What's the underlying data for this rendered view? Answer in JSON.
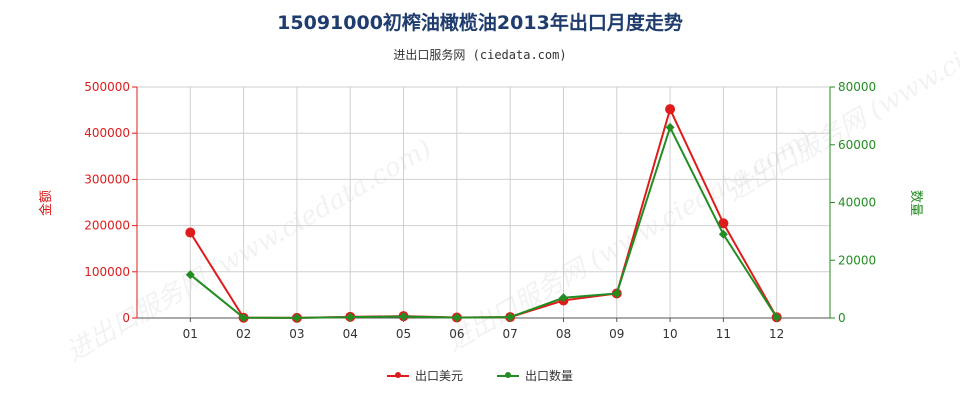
{
  "header": {
    "title": "15091000初榨油橄榄油2013年出口月度走势",
    "subtitle": "进出口服务网 (ciedata.com)"
  },
  "watermark": "进出口服务网 (www.ciedata.com)",
  "colors": {
    "amount": "#dd1c1c",
    "quantity": "#238d23",
    "grid": "#cfcfcf"
  },
  "legend": {
    "amount_label": "出口美元",
    "quantity_label": "出口数量"
  },
  "chart_data": {
    "type": "line",
    "categories": [
      "01",
      "02",
      "03",
      "04",
      "05",
      "06",
      "07",
      "08",
      "09",
      "10",
      "11",
      "12"
    ],
    "ylabel_left": "金额",
    "ylabel_right": "数量",
    "ylim_left": [
      0,
      500000
    ],
    "ylim_right": [
      0,
      80000
    ],
    "yticks_left": [
      0,
      100000,
      200000,
      300000,
      400000,
      500000
    ],
    "yticks_right": [
      0,
      20000,
      40000,
      60000,
      80000
    ],
    "grid": true,
    "legend_position": "bottom",
    "series": [
      {
        "name": "出口美元",
        "axis": "left",
        "values": [
          185000,
          500,
          300,
          2500,
          4000,
          1000,
          2000,
          38000,
          53000,
          452000,
          205000,
          1500
        ]
      },
      {
        "name": "出口数量",
        "axis": "right",
        "values": [
          15000,
          100,
          50,
          300,
          500,
          150,
          300,
          7000,
          8500,
          66000,
          29000,
          200
        ]
      }
    ]
  }
}
